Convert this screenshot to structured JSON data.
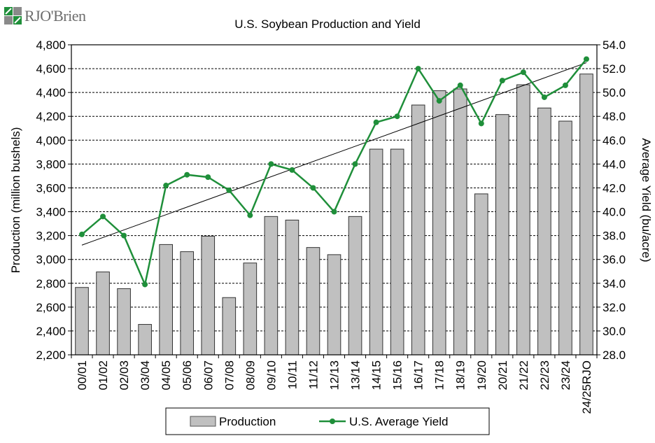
{
  "brand": {
    "name": "RJO'Brien",
    "colors": {
      "green": "#1f8f3a",
      "gray": "#8a8a8a"
    }
  },
  "chart_data": {
    "type": "bar",
    "title": "U.S. Soybean Production and Yield",
    "categories": [
      "00/01",
      "01/02",
      "02/03",
      "03/04",
      "04/05",
      "05/06",
      "06/07",
      "07/08",
      "08/09",
      "09/10",
      "10/11",
      "11/12",
      "12/13",
      "13/14",
      "14/15",
      "15/16",
      "16/17",
      "17/18",
      "18/19",
      "19/20",
      "20/21",
      "21/22",
      "22/23",
      "23/24",
      "24/25RJO"
    ],
    "series": [
      {
        "name": "Production",
        "kind": "bar",
        "axis": "left",
        "color": "#c0c0c0",
        "values": [
          2765,
          2895,
          2755,
          2455,
          3125,
          3065,
          3195,
          2680,
          2970,
          3360,
          3330,
          3100,
          3040,
          3360,
          3925,
          3925,
          4295,
          4415,
          4430,
          3550,
          4215,
          4465,
          4270,
          4160,
          4555
        ]
      },
      {
        "name": "U.S. Average Yield",
        "kind": "line",
        "axis": "right",
        "color": "#1f8f3a",
        "values": [
          38.1,
          39.6,
          38.0,
          33.9,
          42.2,
          43.1,
          42.9,
          41.8,
          39.7,
          44.0,
          43.5,
          42.0,
          40.0,
          44.0,
          47.5,
          48.0,
          52.0,
          49.3,
          50.6,
          47.4,
          51.0,
          51.7,
          49.6,
          50.6,
          52.8
        ]
      }
    ],
    "trendline": {
      "of": "U.S. Average Yield",
      "start": 37.2,
      "end": 52.5,
      "color": "#000000"
    },
    "ylabel": "Production (million bushels)",
    "y2label": "Average Yield (bu/acre)",
    "ylim": [
      2200,
      4800
    ],
    "ytick_step": 200,
    "y2lim": [
      28,
      54
    ],
    "y2tick_step": 2,
    "y_ticks": [
      "2,200",
      "2,400",
      "2,600",
      "2,800",
      "3,000",
      "3,200",
      "3,400",
      "3,600",
      "3,800",
      "4,000",
      "4,200",
      "4,400",
      "4,600",
      "4,800"
    ],
    "y2_ticks": [
      "28.0",
      "30.0",
      "32.0",
      "34.0",
      "36.0",
      "38.0",
      "40.0",
      "42.0",
      "44.0",
      "46.0",
      "48.0",
      "50.0",
      "52.0",
      "54.0"
    ],
    "grid": "horizontal dashed",
    "legend": {
      "position": "bottom",
      "entries": [
        "Production",
        "U.S. Average Yield"
      ]
    }
  }
}
